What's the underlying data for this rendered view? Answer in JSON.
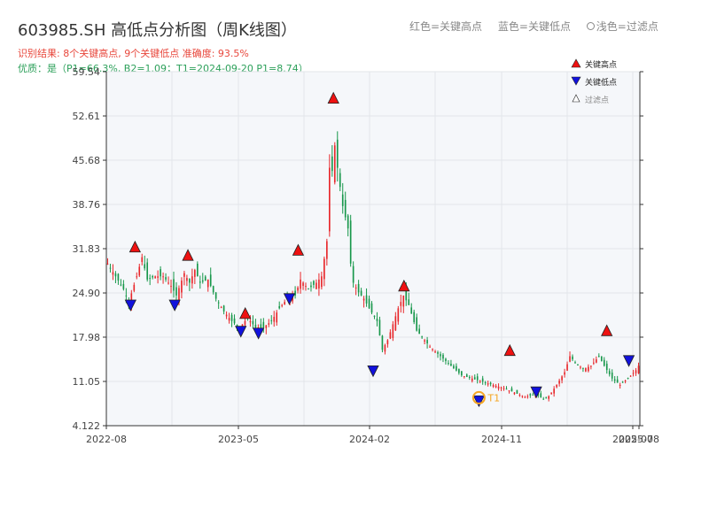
{
  "header": {
    "title": "603985.SH 高低点分析图（周K线图）",
    "result": "识别结果: 8个关键高点, 9个关键低点  准确度: 93.5%",
    "quality": "优质：是（P1=66.3%, B2=1.09；T1=2024-09-20 P1=8.74）",
    "legend_top": {
      "red": "红色=关键高点",
      "blue": "蓝色=关键低点",
      "light": "浅色=过滤点"
    }
  },
  "colors": {
    "up": "#e8262a",
    "down": "#17974a",
    "key_high": "#ee1111",
    "key_low": "#1111dd",
    "t1_marker": "#f5a623",
    "plot_bg": "#f5f7fa",
    "grid": "#e2e5ea",
    "result_text": "#e8473c",
    "quality_text": "#2ca05a"
  },
  "chart_data": {
    "type": "candlestick",
    "ylim": [
      4.122,
      59.54
    ],
    "y_ticks": [
      4.122,
      11.05,
      17.98,
      24.9,
      31.83,
      38.76,
      45.68,
      52.61,
      59.54
    ],
    "y_tick_labels": [
      "4.122",
      "11.05",
      "17.98",
      "24.90",
      "31.83",
      "38.76",
      "45.68",
      "52.61",
      "59.54"
    ],
    "x_ticks": [
      "2022-08",
      "2023-05",
      "2024-02",
      "2024-11",
      "2025-07",
      "2025-08"
    ],
    "legend": {
      "high": "关键高点",
      "low": "关键低点",
      "filtered": "过滤点"
    },
    "t1_label": "T1",
    "t1_week": 167,
    "weeks": 202,
    "closes": [
      [
        0,
        29.5
      ],
      [
        3,
        27.5
      ],
      [
        6,
        25.5
      ],
      [
        8,
        23.5
      ],
      [
        11,
        27.5
      ],
      [
        13,
        30.5
      ],
      [
        15,
        27.0
      ],
      [
        18,
        27.5
      ],
      [
        21,
        27.5
      ],
      [
        24,
        26.0
      ],
      [
        26,
        24.5
      ],
      [
        29,
        28.0
      ],
      [
        31,
        26.5
      ],
      [
        33,
        28.5
      ],
      [
        35,
        26.5
      ],
      [
        38,
        27.0
      ],
      [
        41,
        24.0
      ],
      [
        44,
        22.0
      ],
      [
        47,
        20.5
      ],
      [
        50,
        19.5
      ],
      [
        53,
        21.0
      ],
      [
        56,
        19.5
      ],
      [
        59,
        19.5
      ],
      [
        62,
        20.5
      ],
      [
        65,
        22.5
      ],
      [
        68,
        24.0
      ],
      [
        71,
        24.5
      ],
      [
        73,
        27.0
      ],
      [
        76,
        25.5
      ],
      [
        79,
        26.5
      ],
      [
        81,
        27.5
      ],
      [
        83,
        33.0
      ],
      [
        84,
        44.5
      ],
      [
        85,
        44.0
      ],
      [
        86,
        48.0
      ],
      [
        87,
        44.5
      ],
      [
        89,
        38.5
      ],
      [
        91,
        35.0
      ],
      [
        92,
        29.5
      ],
      [
        93,
        26.5
      ],
      [
        95,
        25.0
      ],
      [
        97,
        24.0
      ],
      [
        99,
        22.5
      ],
      [
        102,
        20.5
      ],
      [
        104,
        16.0
      ],
      [
        106,
        17.5
      ],
      [
        108,
        20.0
      ],
      [
        110,
        22.5
      ],
      [
        112,
        24.5
      ],
      [
        114,
        23.0
      ],
      [
        117,
        19.0
      ],
      [
        119,
        18.0
      ],
      [
        122,
        16.5
      ],
      [
        126,
        15.0
      ],
      [
        130,
        13.5
      ],
      [
        134,
        12.0
      ],
      [
        138,
        11.5
      ],
      [
        142,
        11.0
      ],
      [
        146,
        10.5
      ],
      [
        150,
        10.0
      ],
      [
        154,
        9.3
      ],
      [
        158,
        8.6
      ],
      [
        162,
        9.1
      ],
      [
        165,
        8.3
      ],
      [
        167,
        8.74
      ],
      [
        170,
        10.5
      ],
      [
        173,
        12.5
      ],
      [
        175,
        15.0
      ],
      [
        177,
        14.0
      ],
      [
        180,
        13.0
      ],
      [
        183,
        13.5
      ],
      [
        186,
        15.0
      ],
      [
        188,
        13.5
      ],
      [
        191,
        11.5
      ],
      [
        194,
        10.5
      ],
      [
        197,
        11.5
      ],
      [
        200,
        12.8
      ],
      [
        201,
        13.5
      ]
    ],
    "extra_weeks": 116,
    "key_highs": [
      {
        "week": 6,
        "value": 32.0
      },
      {
        "week": 18,
        "value": 30.7
      },
      {
        "week": 31,
        "value": 21.6
      },
      {
        "week": 43,
        "value": 31.5
      },
      {
        "week": 51,
        "value": 55.3
      },
      {
        "week": 67,
        "value": 25.9
      },
      {
        "week": 91,
        "value": 15.8
      },
      {
        "week": 113,
        "value": 18.9
      }
    ],
    "key_lows": [
      {
        "week": 5,
        "value": 23.1
      },
      {
        "week": 15,
        "value": 23.1
      },
      {
        "week": 30,
        "value": 19.0
      },
      {
        "week": 34,
        "value": 18.7
      },
      {
        "week": 41,
        "value": 24.1
      },
      {
        "week": 60,
        "value": 12.8
      },
      {
        "week": 84,
        "value": 8.1
      },
      {
        "week": 97,
        "value": 9.5
      },
      {
        "week": 118,
        "value": 14.4
      }
    ]
  }
}
